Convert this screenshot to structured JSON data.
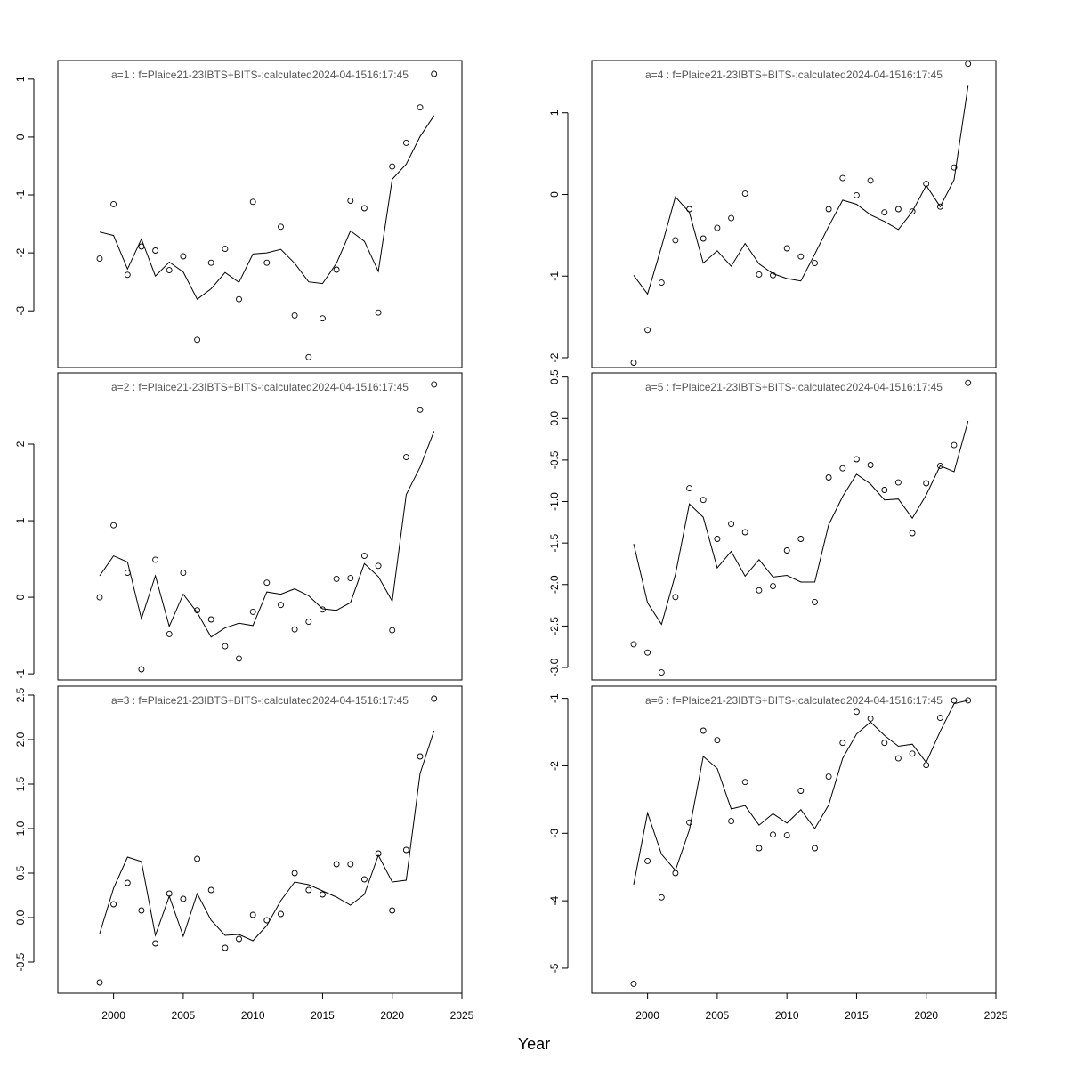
{
  "chart_data": {
    "type": "line",
    "layout": "3 rows x 2 columns",
    "xlabel": "Year",
    "xlim": [
      1996,
      2025
    ],
    "x_ticks": [
      2000,
      2005,
      2010,
      2015,
      2020,
      2025
    ],
    "x": [
      1999,
      2000,
      2001,
      2002,
      2003,
      2004,
      2005,
      2006,
      2007,
      2008,
      2009,
      2010,
      2011,
      2012,
      2013,
      2014,
      2015,
      2016,
      2017,
      2018,
      2019,
      2020,
      2021,
      2022,
      2023
    ],
    "panels": [
      {
        "title": "a=1  :  f=Plaice21-23IBTS+BITS-;calculated2024-04-1516:17:45",
        "ylim": [
          -3.98,
          1.32
        ],
        "y_ticks": [
          -3,
          -2,
          -1,
          0,
          1
        ],
        "series": [
          {
            "kind": "line",
            "values": [
              -1.64,
              -1.7,
              -2.28,
              -1.76,
              -2.4,
              -2.16,
              -2.33,
              -2.8,
              -2.62,
              -2.34,
              -2.51,
              -2.02,
              -2.0,
              -1.94,
              -2.18,
              -2.5,
              -2.53,
              -2.18,
              -1.62,
              -1.8,
              -2.32,
              -0.73,
              -0.47,
              0.01,
              0.37
            ]
          },
          {
            "kind": "points",
            "values": [
              -2.1,
              -1.16,
              -2.38,
              -1.89,
              -1.96,
              -2.3,
              -2.06,
              -3.5,
              -2.17,
              -1.93,
              -2.8,
              -1.12,
              -2.17,
              -1.55,
              -3.08,
              -3.8,
              -3.13,
              -2.29,
              -1.1,
              -1.23,
              -3.03,
              -0.51,
              -0.1,
              0.51,
              1.09
            ]
          }
        ]
      },
      {
        "title": "a=2  :  f=Plaice21-23IBTS+BITS-;calculated2024-04-1516:17:45",
        "ylim": [
          -1.08,
          2.93
        ],
        "y_ticks": [
          -1,
          0,
          1,
          2
        ],
        "series": [
          {
            "kind": "line",
            "values": [
              0.28,
              0.54,
              0.46,
              -0.28,
              0.28,
              -0.38,
              0.04,
              -0.2,
              -0.52,
              -0.4,
              -0.34,
              -0.37,
              0.07,
              0.04,
              0.11,
              0.02,
              -0.15,
              -0.17,
              -0.07,
              0.44,
              0.27,
              -0.05,
              1.34,
              1.7,
              2.17
            ]
          },
          {
            "kind": "points",
            "values": [
              0.0,
              0.94,
              0.32,
              -0.94,
              0.49,
              -0.48,
              0.32,
              -0.17,
              -0.29,
              -0.64,
              -0.8,
              -0.19,
              0.19,
              -0.1,
              -0.42,
              -0.32,
              -0.16,
              0.24,
              0.25,
              0.54,
              0.41,
              -0.43,
              1.83,
              2.45,
              2.78
            ]
          }
        ]
      },
      {
        "title": "a=3  :  f=Plaice21-23IBTS+BITS-;calculated2024-04-1516:17:45",
        "ylim": [
          -0.85,
          2.6
        ],
        "y_ticks": [
          -0.5,
          0.0,
          0.5,
          1.0,
          1.5,
          2.0,
          2.5
        ],
        "series": [
          {
            "kind": "line",
            "values": [
              -0.18,
              0.33,
              0.68,
              0.63,
              -0.2,
              0.24,
              -0.21,
              0.27,
              -0.03,
              -0.2,
              -0.19,
              -0.26,
              -0.09,
              0.19,
              0.4,
              0.37,
              0.3,
              0.23,
              0.14,
              0.26,
              0.7,
              0.4,
              0.42,
              1.62,
              2.1
            ]
          },
          {
            "kind": "points",
            "values": [
              -0.73,
              0.15,
              0.39,
              0.08,
              -0.29,
              0.27,
              0.21,
              0.66,
              0.31,
              -0.34,
              -0.24,
              0.03,
              -0.03,
              0.04,
              0.5,
              0.31,
              0.26,
              0.6,
              0.6,
              0.43,
              0.72,
              0.08,
              0.76,
              1.81,
              2.46
            ]
          }
        ]
      },
      {
        "title": "a=4  :  f=Plaice21-23IBTS+BITS-;calculated2024-04-1516:17:45",
        "ylim": [
          -2.12,
          1.64
        ],
        "y_ticks": [
          -2,
          -1,
          0,
          1
        ],
        "series": [
          {
            "kind": "line",
            "values": [
              -0.99,
              -1.22,
              -0.64,
              -0.03,
              -0.22,
              -0.84,
              -0.69,
              -0.88,
              -0.6,
              -0.85,
              -0.97,
              -1.03,
              -1.06,
              -0.73,
              -0.39,
              -0.07,
              -0.12,
              -0.25,
              -0.33,
              -0.43,
              -0.21,
              0.11,
              -0.15,
              0.18,
              1.33
            ]
          },
          {
            "kind": "points",
            "values": [
              -2.06,
              -1.66,
              -1.08,
              -0.56,
              -0.18,
              -0.54,
              -0.41,
              -0.29,
              0.01,
              -0.98,
              -0.99,
              -0.66,
              -0.76,
              -0.84,
              -0.18,
              0.2,
              -0.01,
              0.17,
              -0.22,
              -0.18,
              -0.21,
              0.13,
              -0.15,
              0.33,
              1.6
            ]
          }
        ]
      },
      {
        "title": "a=5  :  f=Plaice21-23IBTS+BITS-;calculated2024-04-1516:17:45",
        "ylim": [
          -3.15,
          0.55
        ],
        "y_ticks": [
          -3.0,
          -2.5,
          -2.0,
          -1.5,
          -1.0,
          -0.5,
          0.0,
          0.5
        ],
        "series": [
          {
            "kind": "line",
            "values": [
              -1.51,
              -2.22,
              -2.48,
              -1.88,
              -1.03,
              -1.19,
              -1.8,
              -1.6,
              -1.9,
              -1.7,
              -1.91,
              -1.89,
              -1.97,
              -1.97,
              -1.28,
              -0.94,
              -0.67,
              -0.79,
              -0.98,
              -0.97,
              -1.2,
              -0.92,
              -0.57,
              -0.64,
              -0.03
            ]
          },
          {
            "kind": "points",
            "values": [
              -2.72,
              -2.82,
              -3.06,
              -2.15,
              -0.84,
              -0.98,
              -1.45,
              -1.27,
              -1.37,
              -2.07,
              -2.02,
              -1.59,
              -1.45,
              -2.21,
              -0.71,
              -0.6,
              -0.49,
              -0.56,
              -0.86,
              -0.77,
              -1.38,
              -0.78,
              -0.57,
              -0.32,
              0.43
            ]
          }
        ]
      },
      {
        "title": "a=6  :  f=Plaice21-23IBTS+BITS-;calculated2024-04-1516:17:45",
        "ylim": [
          -5.37,
          -0.82
        ],
        "y_ticks": [
          -5,
          -4,
          -3,
          -2,
          -1
        ],
        "series": [
          {
            "kind": "line",
            "values": [
              -3.76,
              -2.7,
              -3.31,
              -3.55,
              -2.95,
              -1.86,
              -2.04,
              -2.64,
              -2.59,
              -2.88,
              -2.71,
              -2.85,
              -2.65,
              -2.93,
              -2.58,
              -1.89,
              -1.53,
              -1.35,
              -1.55,
              -1.71,
              -1.68,
              -1.95,
              -1.49,
              -1.08,
              -1.03
            ]
          },
          {
            "kind": "points",
            "values": [
              -5.23,
              -3.41,
              -3.95,
              -3.59,
              -2.84,
              -1.48,
              -1.62,
              -2.82,
              -2.24,
              -3.22,
              -3.02,
              -3.03,
              -2.37,
              -3.22,
              -2.16,
              -1.66,
              -1.2,
              -1.3,
              -1.66,
              -1.89,
              -1.82,
              -1.99,
              -1.29,
              -1.03,
              -1.03
            ]
          }
        ]
      }
    ]
  }
}
